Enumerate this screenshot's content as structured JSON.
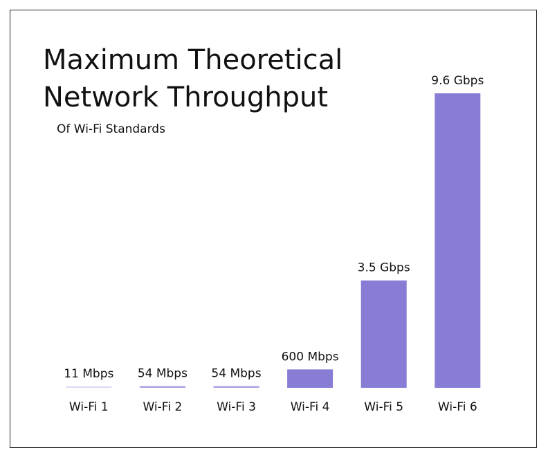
{
  "chart_data": {
    "type": "bar",
    "title": "Maximum Theoretical Network Throughput",
    "subtitle": "Of Wi-Fi Standards",
    "categories": [
      "Wi-Fi 1",
      "Wi-Fi 2",
      "Wi-Fi 3",
      "Wi-Fi 4",
      "Wi-Fi 5",
      "Wi-Fi 6"
    ],
    "values": [
      11,
      54,
      54,
      600,
      3500,
      9600
    ],
    "value_labels": [
      "11 Mbps",
      "54 Mbps",
      "54 Mbps",
      "600 Mbps",
      "3.5 Gbps",
      "9.6 Gbps"
    ],
    "colors": [
      "#dcd8f3",
      "#a79fe2",
      "#a79fe2",
      "#877dd5",
      "#877dd5",
      "#877dd5"
    ]
  }
}
